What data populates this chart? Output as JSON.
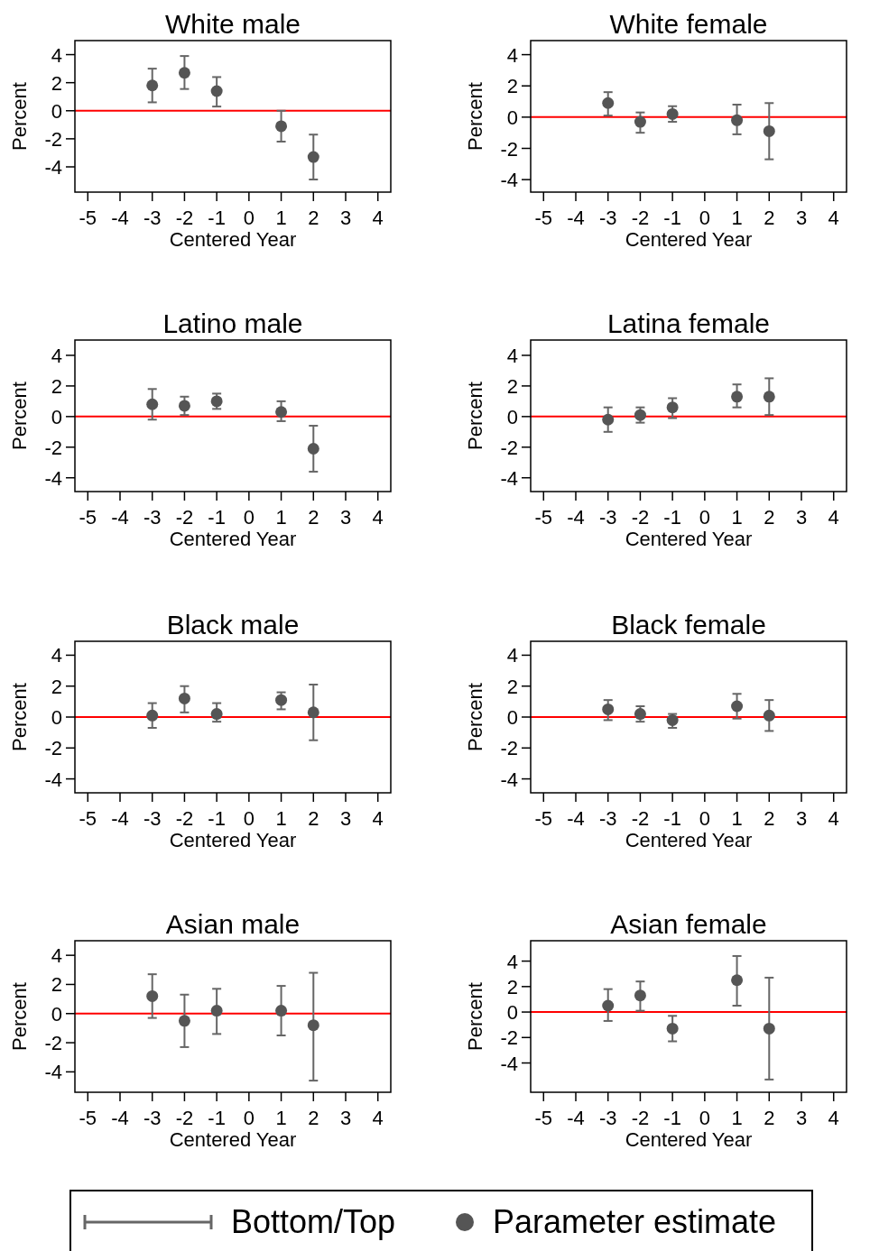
{
  "chart_data": [
    {
      "type": "scatter",
      "title": "White male",
      "xlabel": "Centered Year",
      "ylabel": "Percent",
      "x": [
        -3,
        -2,
        -1,
        1,
        2
      ],
      "xlim": [
        -5.4,
        4.4
      ],
      "xticks": [
        -5,
        -4,
        -3,
        -2,
        -1,
        0,
        1,
        2,
        3,
        4
      ],
      "ylim": [
        -5.8,
        5
      ],
      "yticks": [
        -4,
        -2,
        0,
        2,
        4
      ],
      "grid": false,
      "marker": "circle",
      "ref_lines": [
        {
          "axis": "y",
          "value": 0,
          "color": "#ff0000"
        }
      ],
      "series": [
        {
          "color": "#555555",
          "values": [
            1.8,
            2.7,
            1.4,
            -1.1,
            -3.3
          ],
          "errors": [
            [
              0.6,
              3.0
            ],
            [
              1.55,
              3.9
            ],
            [
              0.3,
              2.4
            ],
            [
              -2.2,
              0
            ],
            [
              -4.9,
              -1.7
            ]
          ]
        }
      ]
    },
    {
      "type": "scatter",
      "title": "White female",
      "xlabel": "Centered Year",
      "ylabel": "Percent",
      "x": [
        -3,
        -2,
        -1,
        1,
        2
      ],
      "xlim": [
        -5.4,
        4.4
      ],
      "xticks": [
        -5,
        -4,
        -3,
        -2,
        -1,
        0,
        1,
        2,
        3,
        4
      ],
      "ylim": [
        -4.8,
        4.9
      ],
      "yticks": [
        -4,
        -2,
        0,
        2,
        4
      ],
      "grid": false,
      "marker": "circle",
      "ref_lines": [
        {
          "axis": "y",
          "value": 0,
          "color": "#ff0000"
        }
      ],
      "series": [
        {
          "color": "#555555",
          "values": [
            0.9,
            -0.3,
            0.2,
            -0.2,
            -0.9
          ],
          "errors": [
            [
              0.1,
              1.6
            ],
            [
              -1.0,
              0.3
            ],
            [
              -0.3,
              0.7
            ],
            [
              -1.1,
              0.8
            ],
            [
              -2.7,
              0.9
            ]
          ]
        }
      ]
    },
    {
      "type": "scatter",
      "title": "Latino male",
      "xlabel": "Centered Year",
      "ylabel": "Percent",
      "x": [
        -3,
        -2,
        -1,
        1,
        2
      ],
      "xlim": [
        -5.4,
        4.4
      ],
      "xticks": [
        -5,
        -4,
        -3,
        -2,
        -1,
        0,
        1,
        2,
        3,
        4
      ],
      "ylim": [
        -4.9,
        5
      ],
      "yticks": [
        -4,
        -2,
        0,
        2,
        4
      ],
      "grid": false,
      "marker": "circle",
      "ref_lines": [
        {
          "axis": "y",
          "value": 0,
          "color": "#ff0000"
        }
      ],
      "series": [
        {
          "color": "#555555",
          "values": [
            0.8,
            0.7,
            1.0,
            0.3,
            -2.1
          ],
          "errors": [
            [
              -0.2,
              1.8
            ],
            [
              0.1,
              1.3
            ],
            [
              0.5,
              1.5
            ],
            [
              -0.3,
              1.0
            ],
            [
              -3.6,
              -0.6
            ]
          ]
        }
      ]
    },
    {
      "type": "scatter",
      "title": "Latina female",
      "xlabel": "Centered Year",
      "ylabel": "Percent",
      "x": [
        -3,
        -2,
        -1,
        1,
        2
      ],
      "xlim": [
        -5.4,
        4.4
      ],
      "xticks": [
        -5,
        -4,
        -3,
        -2,
        -1,
        0,
        1,
        2,
        3,
        4
      ],
      "ylim": [
        -4.9,
        5
      ],
      "yticks": [
        -4,
        -2,
        0,
        2,
        4
      ],
      "grid": false,
      "marker": "circle",
      "ref_lines": [
        {
          "axis": "y",
          "value": 0,
          "color": "#ff0000"
        }
      ],
      "series": [
        {
          "color": "#555555",
          "values": [
            -0.2,
            0.1,
            0.6,
            1.3,
            1.3
          ],
          "errors": [
            [
              -1.0,
              0.6
            ],
            [
              -0.4,
              0.6
            ],
            [
              -0.1,
              1.2
            ],
            [
              0.6,
              2.1
            ],
            [
              0.1,
              2.5
            ]
          ]
        }
      ]
    },
    {
      "type": "scatter",
      "title": "Black male",
      "xlabel": "Centered Year",
      "ylabel": "Percent",
      "x": [
        -3,
        -2,
        -1,
        1,
        2
      ],
      "xlim": [
        -5.4,
        4.4
      ],
      "xticks": [
        -5,
        -4,
        -3,
        -2,
        -1,
        0,
        1,
        2,
        3,
        4
      ],
      "ylim": [
        -4.9,
        4.9
      ],
      "yticks": [
        -4,
        -2,
        0,
        2,
        4
      ],
      "grid": false,
      "marker": "circle",
      "ref_lines": [
        {
          "axis": "y",
          "value": 0,
          "color": "#ff0000"
        }
      ],
      "series": [
        {
          "color": "#555555",
          "values": [
            0.1,
            1.2,
            0.2,
            1.1,
            0.3
          ],
          "errors": [
            [
              -0.7,
              0.9
            ],
            [
              0.3,
              2.0
            ],
            [
              -0.3,
              0.9
            ],
            [
              0.5,
              1.6
            ],
            [
              -1.5,
              2.1
            ]
          ]
        }
      ]
    },
    {
      "type": "scatter",
      "title": "Black female",
      "xlabel": "Centered Year",
      "ylabel": "Percent",
      "x": [
        -3,
        -2,
        -1,
        1,
        2
      ],
      "xlim": [
        -5.4,
        4.4
      ],
      "xticks": [
        -5,
        -4,
        -3,
        -2,
        -1,
        0,
        1,
        2,
        3,
        4
      ],
      "ylim": [
        -4.9,
        4.9
      ],
      "yticks": [
        -4,
        -2,
        0,
        2,
        4
      ],
      "grid": false,
      "marker": "circle",
      "ref_lines": [
        {
          "axis": "y",
          "value": 0,
          "color": "#ff0000"
        }
      ],
      "series": [
        {
          "color": "#555555",
          "values": [
            0.5,
            0.2,
            -0.2,
            0.7,
            0.1
          ],
          "errors": [
            [
              -0.2,
              1.1
            ],
            [
              -0.3,
              0.7
            ],
            [
              -0.7,
              0.2
            ],
            [
              -0.1,
              1.5
            ],
            [
              -0.9,
              1.1
            ]
          ]
        }
      ]
    },
    {
      "type": "scatter",
      "title": "Asian male",
      "xlabel": "Centered Year",
      "ylabel": "Percent",
      "x": [
        -3,
        -2,
        -1,
        1,
        2
      ],
      "xlim": [
        -5.4,
        4.4
      ],
      "xticks": [
        -5,
        -4,
        -3,
        -2,
        -1,
        0,
        1,
        2,
        3,
        4
      ],
      "ylim": [
        -5.4,
        5
      ],
      "yticks": [
        -4,
        -2,
        0,
        2,
        4
      ],
      "grid": false,
      "marker": "circle",
      "ref_lines": [
        {
          "axis": "y",
          "value": 0,
          "color": "#ff0000"
        }
      ],
      "series": [
        {
          "color": "#555555",
          "values": [
            1.2,
            -0.5,
            0.2,
            0.2,
            -0.8
          ],
          "errors": [
            [
              -0.3,
              2.7
            ],
            [
              -2.3,
              1.3
            ],
            [
              -1.4,
              1.7
            ],
            [
              -1.5,
              1.9
            ],
            [
              -4.6,
              2.8
            ]
          ]
        }
      ]
    },
    {
      "type": "scatter",
      "title": "Asian female",
      "xlabel": "Centered Year",
      "ylabel": "Percent",
      "x": [
        -3,
        -2,
        -1,
        1,
        2
      ],
      "xlim": [
        -5.4,
        4.4
      ],
      "xticks": [
        -5,
        -4,
        -3,
        -2,
        -1,
        0,
        1,
        2,
        3,
        4
      ],
      "ylim": [
        -6.3,
        5.6
      ],
      "yticks": [
        -4,
        -2,
        0,
        2,
        4
      ],
      "grid": false,
      "marker": "circle",
      "legend": "bottom",
      "annotations": [
        "Bottom/Top"
      ],
      "ref_lines": [
        {
          "axis": "y",
          "value": 0,
          "color": "#ff0000"
        }
      ],
      "series": [
        {
          "name": "Parameter estimate",
          "color": "#555555",
          "values": [
            0.5,
            1.3,
            -1.3,
            2.5,
            -1.3
          ],
          "errors": [
            [
              -0.7,
              1.8
            ],
            [
              0.1,
              2.4
            ],
            [
              -2.3,
              -0.3
            ],
            [
              0.5,
              4.4
            ],
            [
              -5.3,
              2.7
            ]
          ]
        }
      ]
    }
  ]
}
